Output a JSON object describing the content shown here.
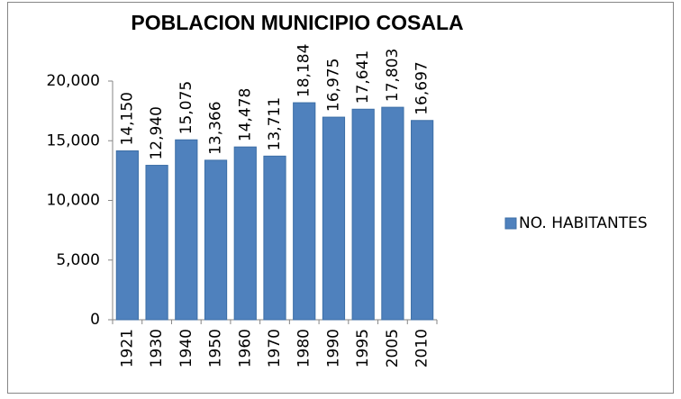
{
  "chart_data": {
    "type": "bar",
    "title": "POBLACION MUNICIPIO COSALA",
    "categories": [
      "1921",
      "1930",
      "1940",
      "1950",
      "1960",
      "1970",
      "1980",
      "1990",
      "1995",
      "2005",
      "2010"
    ],
    "series": [
      {
        "name": "NO. HABITANTES",
        "color": "#4f81bd",
        "values": [
          14150,
          12940,
          15075,
          13366,
          14478,
          13711,
          18184,
          16975,
          17641,
          17803,
          16697
        ],
        "value_labels": [
          "14,150",
          "12,940",
          "15,075",
          "13,366",
          "14,478",
          "13,711",
          "18,184",
          "16,975",
          "17,641",
          "17,803",
          "16,697"
        ]
      }
    ],
    "ylim": [
      0,
      20000
    ],
    "yticks": [
      0,
      {
        "value": 5000,
        "label": "5,000"
      },
      {
        "value": 10000,
        "label": "10,000"
      },
      {
        "value": 15000,
        "label": "15,000"
      },
      {
        "value": 20000,
        "label": "20,000"
      }
    ],
    "grid": false,
    "legend": "right"
  }
}
